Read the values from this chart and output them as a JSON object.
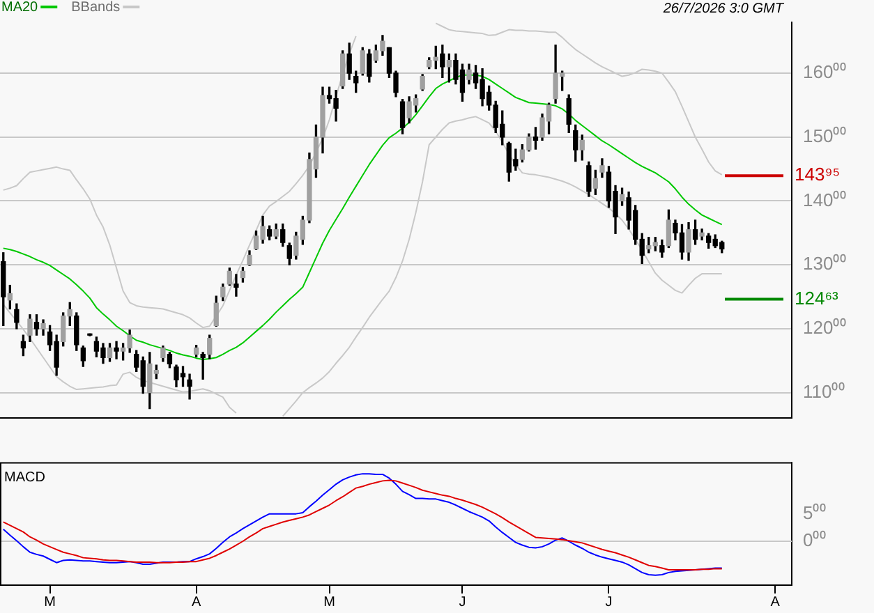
{
  "chart_data": [
    {
      "type": "candlestick",
      "annotations": [
        "26/7/2026 3:0 GMT"
      ],
      "legend": "top left",
      "grid": "y",
      "tick_labels": "y",
      "categories": [
        null,
        null,
        null,
        null,
        null,
        null,
        null,
        null,
        null,
        null,
        null,
        null,
        null,
        null,
        null,
        null,
        null,
        null,
        null,
        null,
        null,
        null,
        null,
        null,
        null,
        null,
        null,
        null,
        null,
        null,
        null,
        null,
        null,
        null,
        null,
        null,
        null,
        null,
        null,
        null,
        null,
        null,
        null,
        null,
        null,
        null,
        null,
        null,
        null,
        null,
        null,
        null,
        null,
        null,
        null,
        null,
        null,
        null,
        null,
        null,
        null,
        null,
        null,
        null,
        null,
        null,
        null,
        null,
        null,
        null,
        null,
        null,
        null,
        null,
        null,
        null,
        null,
        null,
        null,
        null,
        null,
        null,
        null,
        null,
        null,
        null,
        null,
        null,
        null,
        null,
        null,
        null,
        null,
        null,
        null,
        null,
        null,
        null,
        null,
        null,
        null,
        null,
        null,
        null,
        null,
        null,
        null,
        null,
        null,
        null,
        null,
        null,
        null,
        null,
        null,
        null,
        null,
        null,
        null
      ],
      "ylim": [
        106,
        168
      ],
      "yticks": [
        {
          "value": 110,
          "label": "110⁰⁰"
        },
        {
          "value": 120,
          "label": "120⁰⁰"
        },
        {
          "value": 130,
          "label": "130⁰⁰"
        },
        {
          "value": 140,
          "label": "140⁰⁰"
        },
        {
          "value": 150,
          "label": "150⁰⁰"
        },
        {
          "value": 160,
          "label": "160⁰⁰"
        }
      ],
      "ref_lines": [
        {
          "axis": "y",
          "value": 143.95,
          "label": "143⁹⁵",
          "color": "#cc0000"
        },
        {
          "axis": "y",
          "value": 124.63,
          "label": "124⁶³",
          "color": "#008800"
        }
      ],
      "ohlc": [
        [
          130.5,
          131.9,
          120.5,
          125.0
        ],
        [
          124.5,
          126.8,
          123.1,
          125.5
        ],
        [
          123.0,
          123.9,
          120.0,
          121.0
        ],
        [
          118.0,
          119.0,
          115.8,
          117.0
        ],
        [
          119.0,
          122.2,
          118.0,
          121.5
        ],
        [
          121.0,
          122.2,
          119.0,
          120.0
        ],
        [
          120.0,
          121.4,
          119.0,
          120.8
        ],
        [
          119.5,
          120.5,
          116.6,
          117.5
        ],
        [
          118.0,
          119.0,
          112.7,
          114.0
        ],
        [
          118.0,
          122.5,
          117.3,
          122.0
        ],
        [
          122.0,
          124.1,
          120.5,
          123.0
        ],
        [
          122.0,
          122.5,
          116.6,
          117.5
        ],
        [
          117.0,
          117.3,
          114.1,
          115.0
        ],
        [
          119.2,
          119.2,
          118.9,
          119.0
        ],
        [
          118.0,
          118.7,
          115.6,
          116.5
        ],
        [
          117.0,
          117.7,
          114.6,
          115.5
        ],
        [
          115.5,
          117.7,
          114.9,
          117.0
        ],
        [
          117.0,
          118.0,
          115.3,
          116.5
        ],
        [
          116.5,
          117.7,
          115.1,
          117.0
        ],
        [
          117.0,
          119.8,
          116.3,
          119.0
        ],
        [
          116.0,
          116.6,
          113.3,
          114.0
        ],
        [
          115.0,
          115.6,
          109.9,
          111.0
        ],
        [
          110.0,
          116.3,
          107.5,
          114.5
        ],
        [
          113.0,
          114.3,
          112.2,
          113.5
        ],
        [
          115.5,
          117.3,
          114.9,
          117.0
        ],
        [
          116.0,
          116.3,
          113.9,
          114.5
        ],
        [
          114.0,
          114.3,
          110.9,
          112.0
        ],
        [
          113.0,
          114.1,
          111.0,
          112.5
        ],
        [
          112.0,
          112.9,
          109.0,
          111.0
        ],
        [
          116.0,
          117.4,
          115.6,
          117.0
        ],
        [
          116.0,
          116.3,
          112.1,
          115.5
        ],
        [
          116.0,
          119.0,
          115.3,
          118.5
        ],
        [
          120.5,
          125.1,
          120.4,
          124.0
        ],
        [
          125.0,
          127.0,
          124.4,
          126.5
        ],
        [
          127.0,
          129.5,
          126.8,
          129.0
        ],
        [
          127.0,
          128.5,
          125.1,
          126.5
        ],
        [
          128.0,
          129.6,
          127.3,
          129.0
        ],
        [
          130.0,
          132.2,
          129.9,
          131.5
        ],
        [
          132.5,
          135.3,
          132.4,
          134.5
        ],
        [
          134.0,
          137.6,
          133.4,
          136.0
        ],
        [
          135.5,
          136.1,
          133.9,
          134.5
        ],
        [
          134.5,
          136.4,
          134.1,
          135.5
        ],
        [
          135.5,
          136.4,
          132.9,
          133.5
        ],
        [
          133.0,
          133.4,
          130.0,
          131.0
        ],
        [
          131.5,
          135.1,
          130.9,
          134.5
        ],
        [
          134.0,
          137.6,
          133.2,
          137.0
        ],
        [
          137.0,
          147.5,
          136.6,
          146.5
        ],
        [
          145.0,
          151.9,
          143.7,
          150.0
        ],
        [
          150.0,
          157.8,
          147.5,
          156.5
        ],
        [
          156.5,
          157.8,
          155.3,
          156.0
        ],
        [
          156.0,
          157.3,
          152.5,
          154.5
        ],
        [
          158.0,
          163.5,
          157.6,
          163.0
        ],
        [
          163.0,
          164.7,
          159.0,
          160.0
        ],
        [
          159.5,
          160.3,
          157.0,
          158.5
        ],
        [
          160.0,
          164.0,
          159.7,
          163.5
        ],
        [
          163.0,
          163.7,
          158.6,
          159.5
        ],
        [
          162.0,
          164.4,
          161.7,
          163.5
        ],
        [
          163.5,
          165.9,
          162.8,
          165.0
        ],
        [
          164.0,
          164.0,
          159.3,
          160.0
        ],
        [
          160.0,
          160.3,
          156.3,
          157.0
        ],
        [
          155.5,
          155.9,
          150.5,
          151.5
        ],
        [
          153.0,
          156.3,
          152.2,
          155.5
        ],
        [
          155.0,
          156.6,
          153.9,
          156.0
        ],
        [
          157.5,
          159.8,
          157.3,
          159.5
        ],
        [
          161.0,
          162.4,
          160.7,
          162.0
        ],
        [
          162.0,
          164.2,
          160.7,
          162.5
        ],
        [
          163.0,
          164.4,
          159.3,
          161.0
        ],
        [
          161.0,
          163.0,
          158.6,
          162.0
        ],
        [
          162.0,
          163.0,
          158.3,
          159.0
        ],
        [
          160.5,
          161.4,
          155.6,
          157.0
        ],
        [
          159.0,
          161.4,
          158.3,
          160.5
        ],
        [
          160.0,
          161.2,
          157.6,
          158.5
        ],
        [
          159.0,
          160.7,
          154.9,
          156.0
        ],
        [
          157.0,
          158.0,
          154.2,
          155.0
        ],
        [
          155.0,
          155.6,
          150.7,
          151.5
        ],
        [
          152.0,
          154.1,
          148.8,
          150.0
        ],
        [
          149.0,
          149.2,
          143.1,
          144.5
        ],
        [
          146.5,
          148.1,
          144.8,
          145.5
        ],
        [
          146.5,
          148.8,
          146.1,
          148.0
        ],
        [
          148.0,
          150.5,
          147.8,
          150.0
        ],
        [
          150.0,
          151.5,
          148.1,
          149.5
        ],
        [
          150.0,
          153.6,
          149.5,
          153.0
        ],
        [
          152.5,
          155.3,
          150.5,
          155.0
        ],
        [
          156.0,
          164.4,
          155.3,
          160.0
        ],
        [
          159.5,
          160.3,
          157.3,
          160.0
        ],
        [
          156.0,
          156.6,
          150.7,
          152.0
        ],
        [
          151.0,
          151.9,
          146.2,
          148.0
        ],
        [
          148.0,
          150.3,
          146.4,
          149.5
        ],
        [
          145.5,
          146.1,
          140.7,
          141.5
        ],
        [
          142.0,
          144.8,
          141.0,
          143.5
        ],
        [
          144.5,
          146.6,
          143.7,
          145.5
        ],
        [
          144.5,
          145.4,
          139.0,
          140.0
        ],
        [
          141.5,
          142.4,
          134.9,
          137.5
        ],
        [
          140.0,
          142.0,
          139.3,
          141.0
        ],
        [
          140.5,
          141.4,
          135.6,
          137.0
        ],
        [
          138.5,
          139.3,
          133.2,
          134.0
        ],
        [
          134.0,
          134.9,
          130.2,
          131.5
        ],
        [
          132.5,
          134.3,
          131.9,
          133.0
        ],
        [
          133.0,
          134.3,
          132.2,
          133.5
        ],
        [
          133.0,
          133.9,
          131.2,
          132.0
        ],
        [
          133.0,
          138.6,
          132.7,
          137.0
        ],
        [
          136.5,
          137.0,
          133.9,
          135.0
        ],
        [
          135.0,
          136.3,
          130.9,
          132.0
        ],
        [
          132.0,
          136.6,
          130.7,
          135.5
        ],
        [
          135.5,
          137.0,
          133.2,
          134.0
        ],
        [
          134.5,
          135.6,
          133.9,
          135.0
        ],
        [
          134.5,
          134.9,
          132.6,
          133.5
        ],
        [
          134.0,
          134.7,
          132.7,
          133.0
        ],
        [
          133.5,
          133.7,
          131.9,
          132.5
        ],
        null,
        null,
        null,
        null,
        null,
        null,
        null,
        null,
        null,
        null
      ],
      "series": [
        {
          "name": "MA20",
          "type": "line",
          "color": "#00c800",
          "values": [
            132.6,
            132.4,
            132.1,
            131.7,
            131.3,
            130.8,
            130.4,
            129.9,
            129.2,
            128.5,
            127.8,
            126.9,
            125.9,
            124.8,
            123.3,
            122.3,
            121.4,
            120.4,
            119.7,
            118.9,
            118.2,
            117.9,
            117.5,
            117.2,
            116.9,
            116.6,
            116.2,
            115.9,
            115.7,
            115.4,
            115.2,
            115.3,
            115.5,
            116.0,
            116.6,
            117.1,
            117.8,
            118.7,
            119.6,
            120.5,
            121.5,
            122.6,
            123.6,
            124.6,
            125.5,
            126.5,
            128.8,
            131.1,
            133.4,
            135.4,
            137.1,
            138.8,
            140.6,
            142.3,
            144.0,
            145.7,
            147.2,
            148.7,
            149.9,
            150.6,
            151.4,
            152.3,
            153.5,
            154.9,
            156.3,
            157.6,
            158.3,
            158.8,
            159.3,
            159.7,
            159.7,
            159.7,
            159.5,
            159.0,
            158.3,
            157.6,
            156.9,
            156.2,
            155.8,
            155.4,
            155.3,
            155.2,
            155.1,
            154.9,
            154.4,
            153.6,
            152.6,
            151.8,
            151.0,
            150.2,
            149.4,
            148.8,
            148.1,
            147.4,
            146.7,
            146.0,
            145.4,
            144.9,
            144.4,
            143.7,
            143.0,
            141.9,
            140.6,
            139.5,
            138.6,
            137.8,
            137.3,
            136.8,
            136.3,
            null,
            null,
            null,
            null,
            null,
            null,
            null,
            null,
            null,
            null
          ]
        },
        {
          "name": "BBands",
          "type": "line",
          "color": "#c8c8c8",
          "values": [
            141.7,
            142.0,
            142.4,
            143.5,
            144.5,
            144.7,
            144.9,
            145.1,
            145.3,
            145.0,
            144.8,
            143.3,
            141.9,
            140.3,
            137.8,
            135.9,
            133.1,
            129.5,
            125.9,
            124.1,
            123.6,
            123.4,
            123.3,
            123.2,
            123.1,
            122.8,
            122.5,
            122.2,
            121.7,
            120.9,
            120.2,
            120.4,
            122.0,
            123.6,
            126.0,
            128.4,
            130.7,
            133.1,
            135.4,
            137.8,
            139.2,
            139.9,
            140.7,
            141.5,
            142.7,
            144.0,
            145.5,
            147.6,
            149.8,
            152.7,
            156.3,
            159.9,
            163.0,
            165.8,
            null,
            null,
            null,
            null,
            null,
            null,
            null,
            null,
            null,
            null,
            null,
            167.8,
            167.3,
            166.8,
            166.6,
            166.5,
            166.4,
            166.3,
            166.2,
            165.9,
            166.0,
            166.4,
            166.8,
            166.7,
            166.7,
            166.6,
            166.6,
            166.5,
            166.4,
            166.4,
            165.6,
            164.6,
            163.7,
            163.0,
            162.3,
            161.6,
            161.0,
            160.5,
            160.0,
            159.5,
            159.7,
            160.1,
            160.6,
            160.5,
            160.3,
            160.0,
            158.6,
            157.1,
            154.8,
            152.4,
            150.0,
            148.1,
            146.1,
            144.7,
            144.1,
            null,
            null,
            null,
            null,
            null,
            null,
            null,
            null,
            null,
            null
          ]
        },
        {
          "type": "line",
          "color": "#c8c8c8",
          "values": [
            123.8,
            122.5,
            121.2,
            119.9,
            118.5,
            117.0,
            115.5,
            114.0,
            112.5,
            111.7,
            111.0,
            110.5,
            110.6,
            110.7,
            110.8,
            110.9,
            111.1,
            111.2,
            112.9,
            113.2,
            112.4,
            111.9,
            111.6,
            111.3,
            111.0,
            110.7,
            110.4,
            110.1,
            110.2,
            110.4,
            110.6,
            110.3,
            109.8,
            109.3,
            107.7,
            106.8,
            null,
            null,
            null,
            null,
            null,
            null,
            106.3,
            107.5,
            108.7,
            110.0,
            110.8,
            111.5,
            112.3,
            113.3,
            114.6,
            115.8,
            117.1,
            118.7,
            120.2,
            121.8,
            123.2,
            124.6,
            125.9,
            128.0,
            130.6,
            134.0,
            138.2,
            143.0,
            148.8,
            150.0,
            151.2,
            152.2,
            152.5,
            152.7,
            153.0,
            153.2,
            152.7,
            152.2,
            150.9,
            149.2,
            147.3,
            145.7,
            144.4,
            144.2,
            144.1,
            143.9,
            143.7,
            143.4,
            143.1,
            142.7,
            142.2,
            141.6,
            141.0,
            140.3,
            139.6,
            138.9,
            138.0,
            137.0,
            135.6,
            134.0,
            132.3,
            130.5,
            128.7,
            127.6,
            126.8,
            126.0,
            125.6,
            126.8,
            127.9,
            128.6,
            128.6,
            128.6,
            128.6,
            null,
            null,
            null,
            null,
            null,
            null,
            null,
            null,
            null,
            null
          ]
        }
      ]
    },
    {
      "type": "line",
      "title": "MACD",
      "categories": [
        null,
        null,
        null,
        null,
        null,
        null,
        null,
        "M",
        null,
        null,
        null,
        null,
        null,
        null,
        null,
        null,
        null,
        null,
        null,
        null,
        null,
        null,
        null,
        null,
        null,
        null,
        null,
        null,
        null,
        "A",
        null,
        null,
        null,
        null,
        null,
        null,
        null,
        null,
        null,
        null,
        null,
        null,
        null,
        null,
        null,
        null,
        null,
        null,
        null,
        "M",
        null,
        null,
        null,
        null,
        null,
        null,
        null,
        null,
        null,
        null,
        null,
        null,
        null,
        null,
        null,
        null,
        null,
        null,
        null,
        "J",
        null,
        null,
        null,
        null,
        null,
        null,
        null,
        null,
        null,
        null,
        null,
        null,
        null,
        null,
        null,
        null,
        null,
        null,
        null,
        null,
        null,
        "J",
        null,
        null,
        null,
        null,
        null,
        null,
        null,
        null,
        null,
        null,
        null,
        null,
        null,
        null,
        null,
        null,
        null,
        null,
        null,
        null,
        null,
        null,
        null,
        null,
        "A",
        null,
        null
      ],
      "ylim": [
        -8,
        14.4
      ],
      "yticks": [
        {
          "value": 0,
          "label": "0⁰⁰"
        },
        {
          "value": 5,
          "label": "5⁰⁰"
        }
      ],
      "ref_lines": [
        {
          "axis": "y",
          "value": 0,
          "color": "#c8c8c8"
        }
      ],
      "series": [
        {
          "color": "#0000ff",
          "values": [
            2.2,
            1.1,
            0.1,
            -1.0,
            -2.0,
            -2.4,
            -2.7,
            -3.3,
            -3.9,
            -3.5,
            -3.4,
            -3.5,
            -3.6,
            -3.6,
            -3.7,
            -3.8,
            -3.9,
            -3.9,
            -3.8,
            -3.7,
            -3.9,
            -4.2,
            -4.2,
            -4.0,
            -3.8,
            -3.8,
            -3.8,
            -3.7,
            -3.7,
            -3.2,
            -2.8,
            -2.3,
            -1.3,
            -0.2,
            0.8,
            1.5,
            2.3,
            3.0,
            3.7,
            4.4,
            5.0,
            5.0,
            5.0,
            5.0,
            5.0,
            5.2,
            6.3,
            7.3,
            8.4,
            9.4,
            10.4,
            11.2,
            11.7,
            12.1,
            12.3,
            12.3,
            12.2,
            12.2,
            11.5,
            10.4,
            9.1,
            8.5,
            7.8,
            7.8,
            7.7,
            7.7,
            7.4,
            7.1,
            6.6,
            6.0,
            5.4,
            4.9,
            4.4,
            3.7,
            2.6,
            1.6,
            0.7,
            -0.2,
            -0.7,
            -1.1,
            -1.2,
            -1.0,
            -0.5,
            0.2,
            0.6,
            0.0,
            -0.7,
            -1.3,
            -2.0,
            -2.5,
            -2.9,
            -3.2,
            -3.5,
            -3.8,
            -4.3,
            -5.0,
            -5.7,
            -6.1,
            -6.2,
            -6.1,
            -5.7,
            -5.5,
            -5.4,
            -5.3,
            -5.2,
            -5.1,
            -5.0,
            -4.9,
            -4.9,
            null,
            null,
            null,
            null,
            null,
            null,
            null,
            null,
            null,
            null
          ]
        },
        {
          "color": "#e00000",
          "values": [
            3.5,
            2.9,
            2.3,
            1.7,
            0.8,
            0.2,
            -0.5,
            -1.0,
            -1.5,
            -2.0,
            -2.3,
            -2.6,
            -3.0,
            -3.1,
            -3.2,
            -3.4,
            -3.5,
            -3.5,
            -3.6,
            -3.7,
            -3.8,
            -3.8,
            -3.8,
            -3.9,
            -3.9,
            -3.9,
            -3.8,
            -3.8,
            -3.7,
            -3.7,
            -3.4,
            -3.1,
            -2.6,
            -2.0,
            -1.4,
            -0.7,
            0.0,
            0.8,
            1.5,
            2.3,
            2.7,
            3.1,
            3.5,
            3.8,
            4.1,
            4.4,
            4.8,
            5.4,
            6.0,
            6.6,
            7.4,
            8.1,
            8.9,
            9.7,
            10.0,
            10.4,
            10.7,
            11.0,
            11.1,
            11.0,
            10.6,
            10.2,
            9.8,
            9.3,
            9.0,
            8.7,
            8.4,
            8.2,
            7.8,
            7.5,
            7.1,
            6.7,
            6.2,
            5.6,
            5.0,
            4.3,
            3.5,
            2.8,
            2.1,
            1.4,
            0.7,
            0.6,
            0.5,
            0.4,
            0.3,
            0.1,
            -0.1,
            -0.3,
            -0.7,
            -1.1,
            -1.5,
            -1.8,
            -2.1,
            -2.5,
            -2.9,
            -3.4,
            -3.9,
            -4.4,
            -4.6,
            -4.9,
            -5.2,
            -5.2,
            -5.2,
            -5.2,
            -5.2,
            -5.1,
            -5.1,
            -5.0,
            -5.0,
            null,
            null,
            null,
            null,
            null,
            null,
            null,
            null,
            null,
            null
          ]
        }
      ]
    }
  ]
}
